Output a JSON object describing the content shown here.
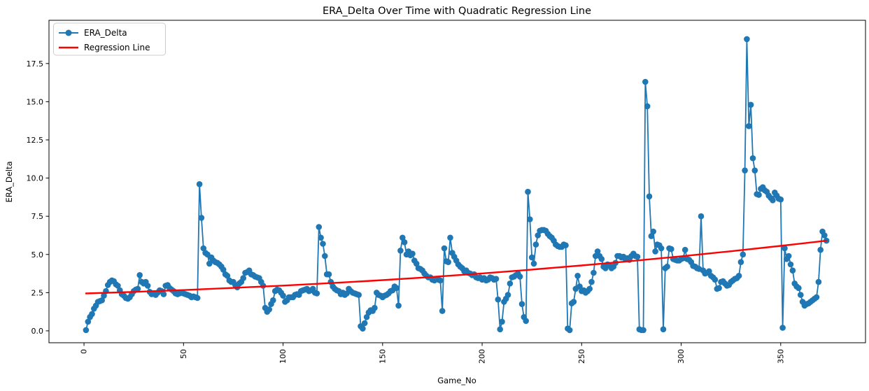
{
  "chart_data": {
    "type": "line",
    "title": "ERA_Delta Over Time with Quadratic Regression Line",
    "xlabel": "Game_No",
    "ylabel": "ERA_Delta",
    "xlim": [
      -17.6,
      392.6
    ],
    "ylim": [
      -0.78,
      20.33
    ],
    "x_ticks": [
      0,
      50,
      100,
      150,
      200,
      250,
      300,
      350
    ],
    "y_ticks": [
      0.0,
      2.5,
      5.0,
      7.5,
      10.0,
      12.5,
      15.0,
      17.5
    ],
    "x_tick_rotation": 90,
    "grid": false,
    "colors": {
      "series_blue": "#1f77b4",
      "regression_red": "#ff0000",
      "spine": "#000000",
      "legend_border": "#cccccc"
    },
    "legend": {
      "position": "upper-left",
      "entries": [
        {
          "label": "ERA_Delta",
          "color": "#1f77b4",
          "marker": "circle",
          "line": true
        },
        {
          "label": "Regression Line",
          "color": "#ff0000",
          "marker": "none",
          "line": true
        }
      ]
    },
    "series": [
      {
        "name": "ERA_Delta",
        "style": "line-markers",
        "color": "#1f77b4",
        "x_start": 1,
        "values": [
          0.05,
          0.6,
          0.9,
          1.1,
          1.45,
          1.65,
          1.9,
          1.95,
          2.0,
          2.3,
          2.6,
          3.0,
          3.2,
          3.3,
          3.25,
          3.05,
          2.95,
          2.65,
          2.4,
          2.3,
          2.15,
          2.1,
          2.2,
          2.4,
          2.6,
          2.7,
          2.75,
          3.65,
          3.2,
          3.1,
          3.2,
          2.95,
          2.55,
          2.4,
          2.45,
          2.35,
          2.5,
          2.65,
          2.6,
          2.4,
          2.95,
          3.0,
          2.8,
          2.7,
          2.6,
          2.45,
          2.4,
          2.45,
          2.5,
          2.45,
          2.4,
          2.35,
          2.3,
          2.2,
          2.25,
          2.2,
          2.15,
          9.6,
          7.4,
          5.4,
          5.1,
          5.0,
          4.4,
          4.8,
          4.6,
          4.5,
          4.45,
          4.35,
          4.2,
          4.0,
          3.7,
          3.6,
          3.3,
          3.2,
          3.2,
          3.0,
          2.85,
          3.1,
          3.2,
          3.45,
          3.8,
          3.85,
          3.95,
          3.7,
          3.65,
          3.55,
          3.5,
          3.45,
          3.2,
          2.95,
          1.5,
          1.25,
          1.4,
          1.75,
          2.0,
          2.6,
          2.7,
          2.65,
          2.5,
          2.3,
          1.9,
          2.0,
          2.2,
          2.2,
          2.2,
          2.35,
          2.4,
          2.35,
          2.6,
          2.65,
          2.7,
          2.75,
          2.6,
          2.65,
          2.75,
          2.5,
          2.45,
          6.8,
          6.1,
          5.7,
          4.9,
          3.7,
          3.7,
          3.2,
          2.9,
          2.75,
          2.65,
          2.6,
          2.4,
          2.5,
          2.35,
          2.45,
          2.75,
          2.6,
          2.5,
          2.45,
          2.4,
          2.35,
          0.3,
          0.15,
          0.5,
          0.9,
          1.2,
          1.35,
          1.3,
          1.5,
          2.5,
          2.35,
          2.3,
          2.2,
          2.3,
          2.35,
          2.45,
          2.6,
          2.65,
          2.9,
          2.8,
          1.65,
          5.25,
          6.1,
          5.8,
          5.0,
          5.2,
          4.95,
          5.05,
          4.6,
          4.4,
          4.1,
          4.05,
          3.95,
          3.75,
          3.6,
          3.5,
          3.5,
          3.35,
          3.3,
          3.4,
          3.35,
          3.3,
          1.3,
          5.4,
          4.55,
          4.5,
          6.1,
          5.1,
          4.85,
          4.6,
          4.35,
          4.2,
          4.1,
          3.9,
          3.95,
          3.8,
          3.75,
          3.65,
          3.7,
          3.5,
          3.45,
          3.5,
          3.35,
          3.45,
          3.3,
          3.35,
          3.5,
          3.45,
          3.35,
          3.4,
          2.05,
          0.1,
          0.6,
          1.9,
          2.1,
          2.35,
          3.1,
          3.5,
          3.55,
          3.65,
          3.75,
          3.55,
          1.75,
          0.9,
          0.65,
          9.1,
          7.3,
          4.8,
          4.4,
          5.65,
          6.25,
          6.55,
          6.6,
          6.6,
          6.55,
          6.35,
          6.2,
          6.1,
          5.9,
          5.65,
          5.55,
          5.5,
          5.5,
          5.65,
          5.6,
          0.15,
          0.05,
          1.8,
          1.9,
          2.75,
          3.6,
          2.9,
          2.6,
          2.65,
          2.5,
          2.6,
          2.75,
          3.2,
          3.8,
          4.9,
          5.2,
          4.9,
          4.7,
          4.2,
          4.1,
          4.35,
          4.3,
          4.1,
          4.2,
          4.45,
          4.9,
          4.9,
          4.8,
          4.85,
          4.7,
          4.75,
          4.65,
          4.9,
          5.05,
          4.9,
          4.85,
          0.1,
          0.05,
          0.05,
          16.3,
          14.7,
          8.8,
          6.2,
          6.5,
          5.2,
          5.65,
          5.6,
          5.4,
          0.1,
          4.1,
          4.2,
          5.4,
          5.35,
          4.7,
          4.65,
          4.6,
          4.6,
          4.7,
          4.75,
          5.3,
          4.7,
          4.65,
          4.5,
          4.25,
          4.2,
          4.1,
          4.05,
          7.5,
          3.95,
          3.75,
          3.8,
          3.9,
          3.6,
          3.5,
          3.35,
          2.75,
          2.8,
          3.2,
          3.25,
          3.1,
          2.95,
          3.0,
          3.2,
          3.3,
          3.4,
          3.45,
          3.6,
          4.5,
          5.0,
          10.5,
          19.1,
          13.4,
          14.8,
          11.3,
          10.5,
          8.95,
          8.9,
          9.3,
          9.4,
          9.2,
          9.1,
          8.85,
          8.7,
          8.55,
          9.05,
          8.85,
          8.65,
          8.6,
          0.2,
          5.4,
          4.7,
          4.9,
          4.35,
          3.95,
          3.1,
          2.9,
          2.8,
          2.35,
          1.9,
          1.65,
          1.75,
          1.8,
          1.9,
          2.0,
          2.1,
          2.2,
          3.2,
          5.3,
          6.5,
          6.25,
          5.9
        ]
      },
      {
        "name": "Regression Line",
        "style": "line",
        "color": "#ff0000",
        "points": [
          [
            1,
            2.45
          ],
          [
            25,
            2.55
          ],
          [
            50,
            2.67
          ],
          [
            75,
            2.81
          ],
          [
            100,
            2.96
          ],
          [
            125,
            3.13
          ],
          [
            150,
            3.32
          ],
          [
            175,
            3.53
          ],
          [
            200,
            3.76
          ],
          [
            225,
            4.01
          ],
          [
            250,
            4.28
          ],
          [
            275,
            4.57
          ],
          [
            300,
            4.88
          ],
          [
            325,
            5.21
          ],
          [
            350,
            5.56
          ],
          [
            373,
            5.9
          ]
        ]
      }
    ]
  }
}
